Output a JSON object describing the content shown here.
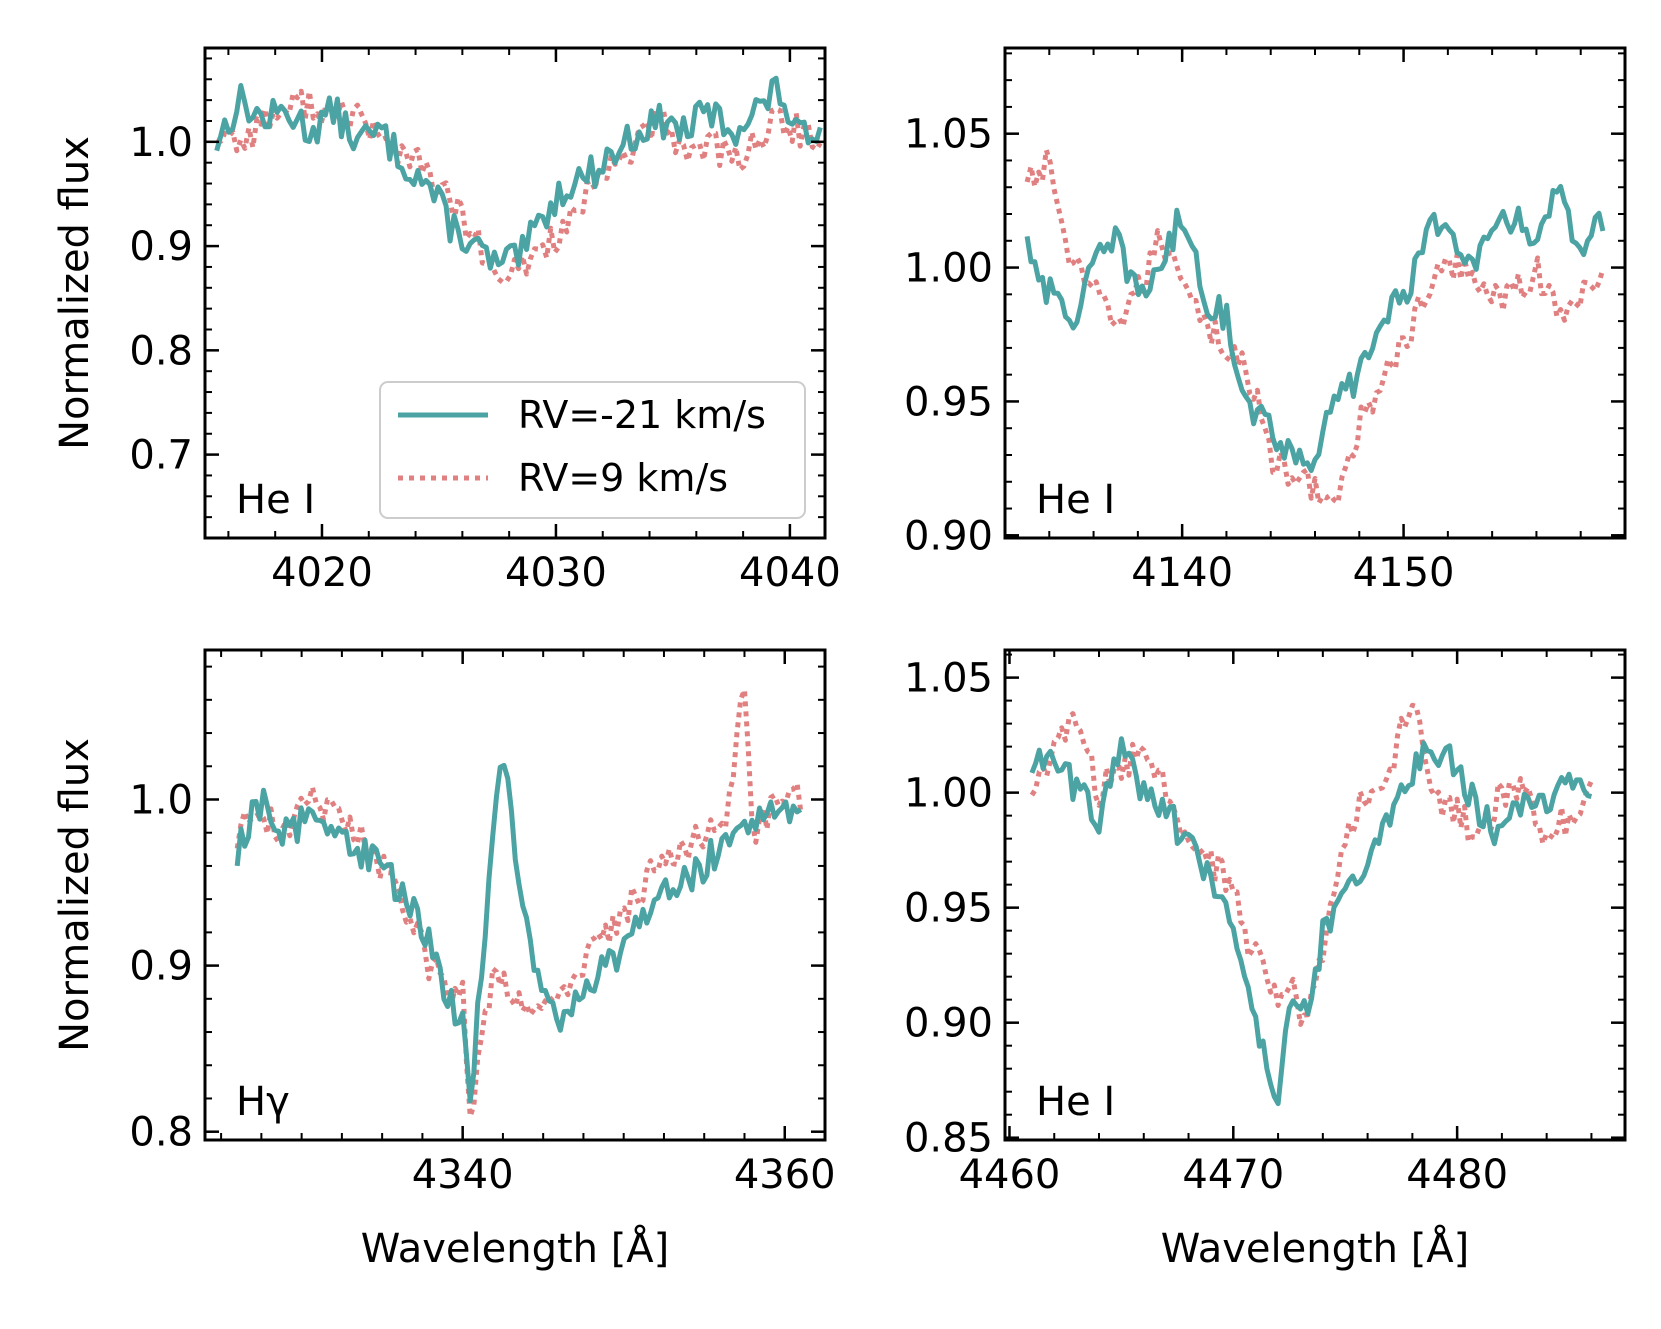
{
  "series_styles": {
    "rv_minus21": {
      "name": "RV=-21 km/s",
      "color": "#4ba3a3",
      "dash": "solid"
    },
    "rv_plus9": {
      "name": "RV=9 km/s",
      "color": "#e08080",
      "dash": "dotted"
    }
  },
  "chart_data": [
    {
      "type": "line",
      "panel_label": "He I",
      "xlabel": "",
      "ylabel": "Normalized flux",
      "xlim": [
        4015,
        4041.5
      ],
      "ylim": [
        0.62,
        1.09
      ],
      "xticks": [
        4020,
        4030,
        4040
      ],
      "xtick_labels": [
        "4020",
        "4030",
        "4040"
      ],
      "yticks": [
        0.7,
        0.8,
        0.9,
        1.0
      ],
      "ytick_labels": [
        "0.7",
        "0.8",
        "0.9",
        "1.0"
      ],
      "legend": {
        "position": "lower-right",
        "entries": [
          "RV=-21 km/s",
          "RV=9 km/s"
        ]
      },
      "series": [
        {
          "name": "RV=-21 km/s",
          "color": "#4ba3a3",
          "dash": "solid",
          "x": [
            4015.5,
            4016.5,
            4017.5,
            4018.5,
            4019.5,
            4020.5,
            4021.5,
            4022.5,
            4023.5,
            4024.5,
            4025.5,
            4026.5,
            4027.5,
            4028.5,
            4029.5,
            4030.5,
            4031.5,
            4032.5,
            4033.5,
            4034.5,
            4035.5,
            4036.5,
            4037.5,
            4038.5,
            4039.5,
            4040.5,
            4041.3
          ],
          "y": [
            1.0,
            1.04,
            1.02,
            1.03,
            1.01,
            1.03,
            1.0,
            1.01,
            0.98,
            0.96,
            0.92,
            0.9,
            0.88,
            0.89,
            0.93,
            0.96,
            0.97,
            0.99,
            1.01,
            1.02,
            1.01,
            1.03,
            1.01,
            1.03,
            1.05,
            1.0,
            1.02
          ]
        },
        {
          "name": "RV=9 km/s",
          "color": "#e08080",
          "dash": "dotted",
          "x": [
            4015.5,
            4016.5,
            4017.5,
            4018.5,
            4019.5,
            4020.5,
            4021.5,
            4022.5,
            4023.5,
            4024.5,
            4025.5,
            4026.5,
            4027.5,
            4028.5,
            4029.5,
            4030.5,
            4031.5,
            4032.5,
            4033.5,
            4034.5,
            4035.5,
            4036.5,
            4037.5,
            4038.5,
            4039.5,
            4040.5,
            4041.3
          ],
          "y": [
            1.01,
            1.0,
            1.02,
            1.03,
            1.04,
            1.02,
            1.03,
            1.0,
            0.99,
            0.97,
            0.94,
            0.91,
            0.86,
            0.88,
            0.9,
            0.92,
            0.95,
            0.98,
            1.0,
            1.02,
            0.99,
            1.0,
            0.98,
            1.0,
            1.02,
            1.01,
            0.99
          ]
        }
      ]
    },
    {
      "type": "line",
      "panel_label": "He I",
      "xlabel": "",
      "ylabel": "",
      "xlim": [
        4132,
        4160
      ],
      "ylim": [
        0.899,
        1.082
      ],
      "xticks": [
        4140,
        4150
      ],
      "xtick_labels": [
        "4140",
        "4150"
      ],
      "yticks": [
        0.9,
        0.95,
        1.0,
        1.05
      ],
      "ytick_labels": [
        "0.90",
        "0.95",
        "1.00",
        "1.05"
      ],
      "series": [
        {
          "name": "RV=-21 km/s",
          "color": "#4ba3a3",
          "dash": "solid",
          "x": [
            4133,
            4134,
            4135,
            4136,
            4137,
            4138,
            4139,
            4140,
            4141,
            4142,
            4143,
            4144,
            4145,
            4146,
            4147,
            4148,
            4149,
            4150,
            4151,
            4152,
            4153,
            4154,
            4155,
            4156,
            4157,
            4158,
            4159
          ],
          "y": [
            1.01,
            0.99,
            0.98,
            1.0,
            1.01,
            0.99,
            1.0,
            1.02,
            0.99,
            0.98,
            0.95,
            0.94,
            0.93,
            0.93,
            0.95,
            0.96,
            0.98,
            0.99,
            1.01,
            1.02,
            1.0,
            1.01,
            1.02,
            1.01,
            1.03,
            1.0,
            1.02
          ]
        },
        {
          "name": "RV=9 km/s",
          "color": "#e08080",
          "dash": "dotted",
          "x": [
            4133,
            4134,
            4135,
            4136,
            4137,
            4138,
            4139,
            4140,
            4141,
            4142,
            4143,
            4144,
            4145,
            4146,
            4147,
            4148,
            4149,
            4150,
            4151,
            4152,
            4153,
            4154,
            4155,
            4156,
            4157,
            4158,
            4159
          ],
          "y": [
            1.03,
            1.04,
            1.0,
            0.99,
            0.98,
            0.99,
            1.01,
            1.0,
            0.98,
            0.97,
            0.96,
            0.93,
            0.92,
            0.92,
            0.91,
            0.94,
            0.96,
            0.97,
            0.99,
            1.0,
            1.0,
            0.99,
            0.99,
            1.0,
            0.98,
            0.99,
            1.0
          ]
        }
      ]
    },
    {
      "type": "line",
      "panel_label": "Hγ",
      "xlabel": "Wavelength [Å]",
      "ylabel": "Normalized flux",
      "xlim": [
        4324,
        4362.5
      ],
      "ylim": [
        0.795,
        1.09
      ],
      "xticks": [
        4340,
        4360
      ],
      "xtick_labels": [
        "4340",
        "4360"
      ],
      "yticks": [
        0.8,
        0.9,
        1.0
      ],
      "ytick_labels": [
        "0.8",
        "0.9",
        "1.0"
      ],
      "series": [
        {
          "name": "RV=-21 km/s",
          "color": "#4ba3a3",
          "dash": "solid",
          "x": [
            4326,
            4327.5,
            4329,
            4330.5,
            4332,
            4333.5,
            4335,
            4336.5,
            4338,
            4339,
            4340,
            4340.5,
            4341.2,
            4342,
            4342.7,
            4343.5,
            4344.5,
            4346,
            4347.5,
            4349,
            4350.5,
            4352,
            4353.5,
            4355,
            4356.5,
            4358,
            4359.5,
            4361
          ],
          "y": [
            0.97,
            1.0,
            0.98,
            0.99,
            0.98,
            0.97,
            0.96,
            0.94,
            0.91,
            0.88,
            0.87,
            0.82,
            0.9,
            1.0,
            1.02,
            0.95,
            0.89,
            0.87,
            0.88,
            0.9,
            0.92,
            0.94,
            0.95,
            0.96,
            0.98,
            0.99,
            1.0,
            0.99
          ]
        },
        {
          "name": "RV=9 km/s",
          "color": "#e08080",
          "dash": "dotted",
          "x": [
            4326,
            4327.5,
            4329,
            4330.5,
            4332,
            4333.5,
            4335,
            4336.5,
            4338,
            4339,
            4340,
            4340.5,
            4341.2,
            4342,
            4342.7,
            4343.5,
            4344.5,
            4346,
            4347.5,
            4349,
            4350.5,
            4352,
            4353.5,
            4355,
            4356.5,
            4357.5,
            4358,
            4359.5,
            4361
          ],
          "y": [
            0.98,
            0.99,
            0.98,
            1.0,
            0.99,
            0.98,
            0.96,
            0.93,
            0.9,
            0.89,
            0.88,
            0.81,
            0.86,
            0.9,
            0.89,
            0.88,
            0.87,
            0.88,
            0.9,
            0.92,
            0.94,
            0.96,
            0.97,
            0.98,
            0.99,
            1.07,
            0.98,
            1.0,
            1.0
          ]
        }
      ]
    },
    {
      "type": "line",
      "panel_label": "He I",
      "xlabel": "Wavelength [Å]",
      "ylabel": "",
      "xlim": [
        4459.8,
        4487.5
      ],
      "ylim": [
        0.849,
        1.062
      ],
      "xticks": [
        4460,
        4470,
        4480
      ],
      "xtick_labels": [
        "4460",
        "4470",
        "4480"
      ],
      "yticks": [
        0.85,
        0.9,
        0.95,
        1.0,
        1.05
      ],
      "ytick_labels": [
        "0.85",
        "0.90",
        "0.95",
        "1.00",
        "1.05"
      ],
      "series": [
        {
          "name": "RV=-21 km/s",
          "color": "#4ba3a3",
          "dash": "solid",
          "x": [
            4461,
            4462,
            4463,
            4464,
            4465,
            4466,
            4467,
            4468,
            4469,
            4470,
            4470.8,
            4471.5,
            4472,
            4472.5,
            4473,
            4473.5,
            4474,
            4475,
            4476,
            4477,
            4478,
            4479,
            4480,
            4481,
            4482,
            4483,
            4484,
            4485,
            4486
          ],
          "y": [
            1.01,
            1.02,
            1.0,
            0.99,
            1.02,
            1.0,
            0.99,
            0.98,
            0.96,
            0.94,
            0.91,
            0.88,
            0.86,
            0.91,
            0.9,
            0.91,
            0.94,
            0.96,
            0.97,
            0.99,
            1.01,
            1.02,
            1.01,
            0.99,
            0.98,
            1.0,
            0.99,
            1.01,
            1.0
          ]
        },
        {
          "name": "RV=9 km/s",
          "color": "#e08080",
          "dash": "dotted",
          "x": [
            4461,
            4462,
            4463,
            4464,
            4465,
            4466,
            4467,
            4468,
            4469,
            4470,
            4470.8,
            4471.5,
            4472,
            4472.5,
            4473,
            4473.5,
            4474,
            4475,
            4476,
            4477,
            4478,
            4479,
            4480,
            4481,
            4482,
            4483,
            4484,
            4485,
            4486
          ],
          "y": [
            1.0,
            1.02,
            1.03,
            1.0,
            1.01,
            1.02,
            1.0,
            0.98,
            0.97,
            0.96,
            0.93,
            0.92,
            0.91,
            0.92,
            0.9,
            0.91,
            0.93,
            0.98,
            1.0,
            1.01,
            1.04,
            1.0,
            0.99,
            0.98,
            1.0,
            1.0,
            0.98,
            0.99,
            1.0
          ]
        }
      ]
    }
  ]
}
